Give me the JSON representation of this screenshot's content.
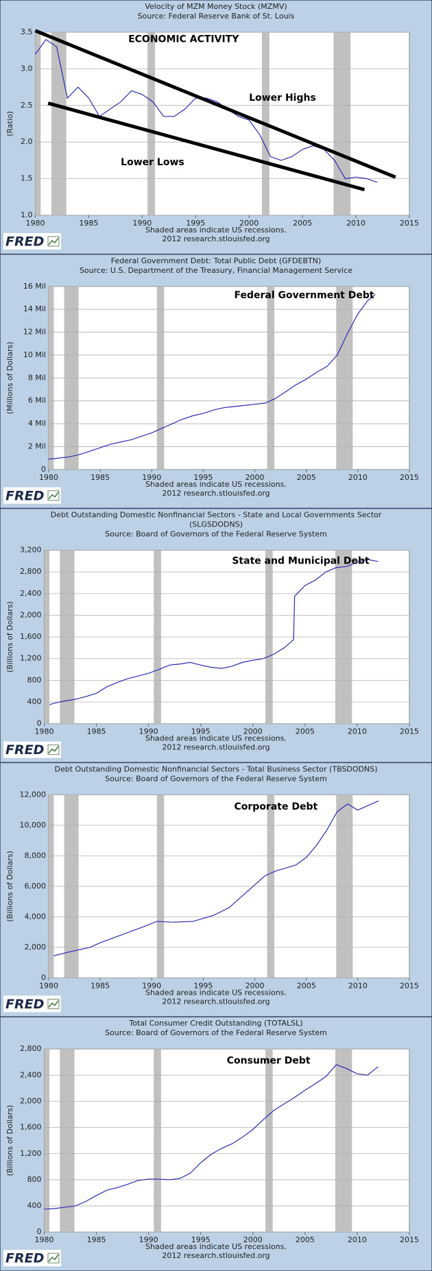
{
  "chart_data": [
    {
      "type": "line",
      "title": [
        "Velocity of MZM Money Stock (MZMV)"
      ],
      "source": "Source: Federal Reserve Bank of St. Louis",
      "ylabel": "(Ratio)",
      "annotations": [
        "ECONOMIC ACTIVITY",
        "Lower Highs",
        "Lower Lows"
      ],
      "trend_lines": [
        {
          "x": [
            1980,
            2013.7
          ],
          "y": [
            3.52,
            1.52
          ]
        },
        {
          "x": [
            1981.2,
            2010.8
          ],
          "y": [
            2.53,
            1.35
          ]
        }
      ],
      "x": [
        1980,
        1981,
        1982,
        1983,
        1984,
        1985,
        1986,
        1987,
        1988,
        1989,
        1990,
        1991,
        1992,
        1993,
        1994,
        1995,
        1996,
        1997,
        1998,
        1999,
        2000,
        2001,
        2002,
        2003,
        2004,
        2005,
        2006,
        2007,
        2008,
        2009,
        2010,
        2011,
        2012
      ],
      "series": [
        {
          "color": "#2b2bb0",
          "values": [
            3.2,
            3.4,
            3.3,
            2.6,
            2.75,
            2.6,
            2.35,
            2.45,
            2.55,
            2.7,
            2.65,
            2.55,
            2.35,
            2.35,
            2.45,
            2.6,
            2.6,
            2.55,
            2.45,
            2.35,
            2.3,
            2.1,
            1.8,
            1.75,
            1.8,
            1.9,
            1.95,
            1.9,
            1.75,
            1.5,
            1.52,
            1.5,
            1.45
          ]
        }
      ],
      "xlim": [
        1980,
        2015
      ],
      "xticks": [
        1980,
        1985,
        1990,
        1995,
        2000,
        2005,
        2010,
        2015
      ],
      "ylim": [
        1,
        3.5
      ],
      "yticks": [
        {
          "value": 1,
          "label": "1.0"
        },
        1.5,
        {
          "value": 2,
          "label": "2.0"
        },
        2.5,
        {
          "value": 3,
          "label": "3.0"
        },
        3.5
      ],
      "grid": true,
      "recessions": [
        [
          1980,
          1980.5
        ],
        [
          1981.5,
          1982.9
        ],
        [
          1990.5,
          1991.2
        ],
        [
          2001.2,
          2001.9
        ],
        [
          2007.9,
          2009.5
        ]
      ],
      "footer": [
        "Shaded areas indicate US recessions.",
        "2012 research.stlouisfed.org"
      ],
      "logo": "FRED"
    },
    {
      "type": "line",
      "title": [
        "Federal Government Debt: Total Public Debt (GFDEBTN)"
      ],
      "source": "Source: U.S. Department of the Treasury, Financial Management Service",
      "ylabel": "(Millions of Dollars)",
      "annotations": [
        "Federal Government Debt"
      ],
      "x": [
        1980,
        1981,
        1982,
        1983,
        1984,
        1985,
        1986,
        1987,
        1988,
        1989,
        1990,
        1991,
        1992,
        1993,
        1994,
        1995,
        1996,
        1997,
        1998,
        1999,
        2000,
        2001,
        2002,
        2003,
        2004,
        2005,
        2006,
        2007,
        2008,
        2009,
        2010,
        2011,
        2011.7
      ],
      "series": [
        {
          "color": "#2b2bb0",
          "values": [
            0.9,
            1.0,
            1.1,
            1.3,
            1.6,
            1.9,
            2.2,
            2.4,
            2.6,
            2.9,
            3.2,
            3.6,
            4.0,
            4.4,
            4.7,
            4.9,
            5.2,
            5.4,
            5.5,
            5.6,
            5.7,
            5.8,
            6.2,
            6.8,
            7.4,
            7.9,
            8.5,
            9.0,
            10.0,
            11.9,
            13.6,
            14.8,
            15.3
          ]
        }
      ],
      "xlim": [
        1980,
        2015
      ],
      "xticks": [
        1980,
        1985,
        1990,
        1995,
        2000,
        2005,
        2010,
        2015
      ],
      "ylim": [
        0,
        16
      ],
      "yticks": [
        0,
        {
          "value": 2,
          "label": "2 Mil"
        },
        {
          "value": 4,
          "label": "4 Mil"
        },
        {
          "value": 6,
          "label": "6 Mil"
        },
        {
          "value": 8,
          "label": "8 Mil"
        },
        {
          "value": 10,
          "label": "10 Mil"
        },
        {
          "value": 12,
          "label": "12 Mil"
        },
        {
          "value": 14,
          "label": "14 Mil"
        },
        {
          "value": 16,
          "label": "16 Mil"
        }
      ],
      "grid": true,
      "recessions": [
        [
          1980,
          1980.5
        ],
        [
          1981.5,
          1982.9
        ],
        [
          1990.5,
          1991.2
        ],
        [
          2001.2,
          2001.9
        ],
        [
          2007.9,
          2009.5
        ]
      ],
      "footer": [
        "Shaded areas indicate US recessions.",
        "2012 research.stlouisfed.org"
      ],
      "logo": "FRED"
    },
    {
      "type": "line",
      "title": [
        "Debt Outstanding Domestic Nonfinancial Sectors - State and Local Governments Sector",
        "(SLGSDODNS)"
      ],
      "source": "Source: Board of Governors of the Federal Reserve System",
      "ylabel": "(Billions of Dollars)",
      "annotations": [
        "State and Municipal Debt"
      ],
      "x": [
        1980.5,
        1981,
        1982,
        1983,
        1984,
        1985,
        1986,
        1987,
        1988,
        1989,
        1990,
        1991,
        1992,
        1993,
        1994,
        1995,
        1996,
        1997,
        1998,
        1999,
        2000,
        2001,
        2002,
        2003,
        2003.9,
        2004,
        2005,
        2006,
        2007,
        2008,
        2009,
        2010,
        2011,
        2012
      ],
      "series": [
        {
          "color": "#2b2bb0",
          "values": [
            350,
            380,
            420,
            450,
            500,
            560,
            680,
            760,
            830,
            880,
            930,
            1000,
            1080,
            1100,
            1130,
            1080,
            1040,
            1020,
            1060,
            1130,
            1170,
            1200,
            1280,
            1400,
            1550,
            2350,
            2550,
            2650,
            2800,
            2880,
            2900,
            2980,
            3030,
            2990
          ]
        }
      ],
      "xlim": [
        1980,
        2015
      ],
      "xticks": [
        1980,
        1985,
        1990,
        1995,
        2000,
        2005,
        2010,
        2015
      ],
      "ylim": [
        0,
        3200
      ],
      "yticks": [
        0,
        400,
        800,
        {
          "value": 1200,
          "label": "1,200"
        },
        {
          "value": 1600,
          "label": "1,600"
        },
        {
          "value": 2000,
          "label": "2,000"
        },
        {
          "value": 2400,
          "label": "2,400"
        },
        {
          "value": 2800,
          "label": "2,800"
        },
        {
          "value": 3200,
          "label": "3,200"
        }
      ],
      "grid": true,
      "recessions": [
        [
          1980,
          1980.5
        ],
        [
          1981.5,
          1982.9
        ],
        [
          1990.5,
          1991.2
        ],
        [
          2001.2,
          2001.9
        ],
        [
          2007.9,
          2009.5
        ]
      ],
      "footer": [
        "Shaded areas indicate US recessions.",
        "2012 research.stlouisfed.org"
      ],
      "logo": "FRED"
    },
    {
      "type": "line",
      "title": [
        "Debt Outstanding Domestic Nonfinancial Sectors - Total Business Sector (TBSDODNS)"
      ],
      "source": "Source: Board of Governors of the Federal Reserve System",
      "ylabel": "(Billions of Dollars)",
      "annotations": [
        "Corporate Debt"
      ],
      "x": [
        1980.5,
        1982,
        1984,
        1985,
        1987,
        1989,
        1990.5,
        1992,
        1994,
        1996,
        1997.5,
        1999,
        2000,
        2001,
        2002,
        2004,
        2005,
        2006,
        2007,
        2008,
        2009,
        2010,
        2011,
        2012
      ],
      "series": [
        {
          "color": "#2b2bb0",
          "values": [
            1450,
            1700,
            2000,
            2300,
            2800,
            3300,
            3700,
            3650,
            3700,
            4100,
            4600,
            5500,
            6100,
            6700,
            7000,
            7400,
            7900,
            8700,
            9700,
            10900,
            11400,
            11000,
            11300,
            11600
          ]
        }
      ],
      "xlim": [
        1980,
        2015
      ],
      "xticks": [
        1980,
        1985,
        1990,
        1995,
        2000,
        2005,
        2010,
        2015
      ],
      "ylim": [
        0,
        12000
      ],
      "yticks": [
        0,
        {
          "value": 2000,
          "label": "2,000"
        },
        {
          "value": 4000,
          "label": "4,000"
        },
        {
          "value": 6000,
          "label": "6,000"
        },
        {
          "value": 8000,
          "label": "8,000"
        },
        {
          "value": 10000,
          "label": "10,000"
        },
        {
          "value": 12000,
          "label": "12,000"
        }
      ],
      "grid": true,
      "recessions": [
        [
          1980,
          1980.5
        ],
        [
          1981.5,
          1982.9
        ],
        [
          1990.5,
          1991.2
        ],
        [
          2001.2,
          2001.9
        ],
        [
          2007.9,
          2009.5
        ]
      ],
      "footer": [
        "Shaded areas indicate US recessions.",
        "2012 research.stlouisfed.org"
      ],
      "logo": "FRED"
    },
    {
      "type": "line",
      "title": [
        "Total Consumer Credit Outstanding (TOTALSL)"
      ],
      "source": "Source: Board of Governors of the Federal Reserve System",
      "ylabel": "(Billions of Dollars)",
      "annotations": [
        "Consumer Debt"
      ],
      "x": [
        1980,
        1981,
        1982,
        1983,
        1984,
        1985,
        1986,
        1987,
        1988,
        1989,
        1990,
        1991,
        1992,
        1993,
        1994,
        1995,
        1996,
        1997,
        1998,
        1999,
        2000,
        2001,
        2002,
        2003,
        2004,
        2005,
        2006,
        2007,
        2008,
        2009,
        2010,
        2011,
        2012
      ],
      "series": [
        {
          "color": "#2b2bb0",
          "values": [
            350,
            360,
            380,
            400,
            470,
            560,
            640,
            680,
            730,
            790,
            810,
            810,
            800,
            820,
            900,
            1060,
            1190,
            1280,
            1350,
            1450,
            1570,
            1720,
            1860,
            1960,
            2060,
            2170,
            2270,
            2380,
            2560,
            2500,
            2420,
            2400,
            2530
          ]
        }
      ],
      "xlim": [
        1980,
        2015
      ],
      "xticks": [
        1980,
        1985,
        1990,
        1995,
        2000,
        2005,
        2010,
        2015
      ],
      "ylim": [
        0,
        2800
      ],
      "yticks": [
        0,
        400,
        800,
        {
          "value": 1200,
          "label": "1,200"
        },
        {
          "value": 1600,
          "label": "1,600"
        },
        {
          "value": 2000,
          "label": "2,000"
        },
        {
          "value": 2400,
          "label": "2,400"
        },
        {
          "value": 2800,
          "label": "2,800"
        }
      ],
      "grid": true,
      "recessions": [
        [
          1980,
          1980.5
        ],
        [
          1981.5,
          1982.9
        ],
        [
          1990.5,
          1991.2
        ],
        [
          2001.2,
          2001.9
        ],
        [
          2007.9,
          2009.5
        ]
      ],
      "footer": [
        "Shaded areas indicate US recessions.",
        "2012 research.stlouisfed.org"
      ],
      "logo": "FRED"
    }
  ]
}
